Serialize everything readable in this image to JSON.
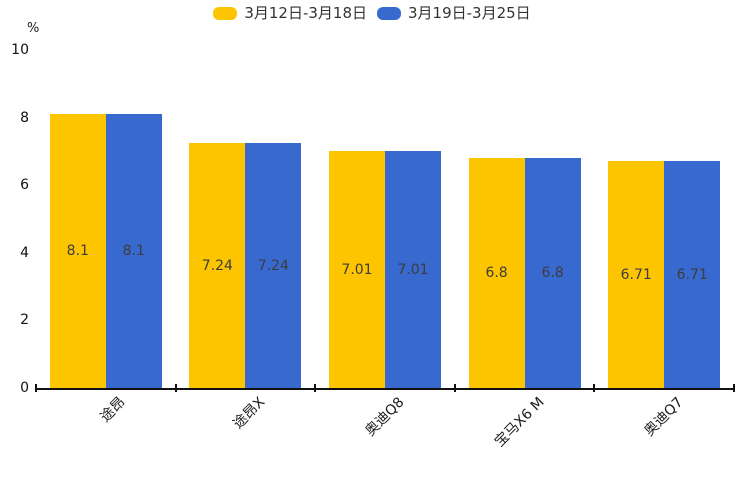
{
  "colors": {
    "series1": "#FDC500",
    "series2": "#3869CE",
    "axis": "#111111",
    "value_label": "#3D3D3D",
    "background": "#FFFFFF"
  },
  "chart_data": {
    "type": "bar",
    "title": "",
    "unit_label": "%",
    "categories": [
      "途昂",
      "途昂X",
      "奥迪Q8",
      "宝马X6 M",
      "奥迪Q7"
    ],
    "series": [
      {
        "name": "3月12日-3月18日",
        "color": "#FDC500",
        "values": [
          8.1,
          7.24,
          7.01,
          6.8,
          6.71
        ]
      },
      {
        "name": "3月19日-3月25日",
        "color": "#3869CE",
        "values": [
          8.1,
          7.24,
          7.01,
          6.8,
          6.71
        ]
      }
    ],
    "xlabel": "",
    "ylabel": "%",
    "ylim": [
      0,
      10
    ],
    "yticks": [
      0,
      2,
      4,
      6,
      8,
      10
    ],
    "legend_position": "top-center",
    "grid": false,
    "value_labels": "inside-middle",
    "xtick_label_rotation_deg": 45
  }
}
